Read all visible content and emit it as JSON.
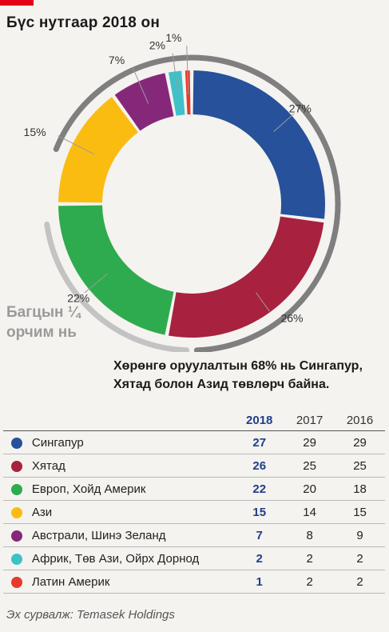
{
  "title": "Бүс нутгаар 2018 он",
  "quarter_note": [
    "Багцын ¼",
    "орчим нь"
  ],
  "subtitle": [
    "Хөрөнгө оруулалтын 68% нь Сингапур,",
    "Хятад болон Азид төвлөрч байна."
  ],
  "source": "Эх сурвалж: Temasek Holdings",
  "colors": {
    "background": "#f4f3ef",
    "accent_red": "#e2001a",
    "arc_gray_dark": "#7f7f7f",
    "arc_gray_light": "#c3c3c3",
    "year_2018": "#1f3d8a"
  },
  "chart_data": {
    "type": "pie",
    "style": "donut",
    "title": "Бүс нутгаар 2018 он",
    "slice_labels_2018": [
      "27%",
      "26%",
      "22%",
      "15%",
      "7%",
      "2%",
      "1%"
    ],
    "table": {
      "columns": [
        "2018",
        "2017",
        "2016"
      ],
      "rows": [
        {
          "name": "Сингапур",
          "color": "#27519a",
          "v2018": 27,
          "v2017": 29,
          "v2016": 29
        },
        {
          "name": "Хятад",
          "color": "#a8213f",
          "v2018": 26,
          "v2017": 25,
          "v2016": 25
        },
        {
          "name": "Европ, Хойд Америк",
          "color": "#2eab4e",
          "v2018": 22,
          "v2017": 20,
          "v2016": 18
        },
        {
          "name": "Ази",
          "color": "#fbbc12",
          "v2018": 15,
          "v2017": 14,
          "v2016": 15
        },
        {
          "name": "Австрали, Шинэ Зеланд",
          "color": "#86287a",
          "v2018": 7,
          "v2017": 8,
          "v2016": 9
        },
        {
          "name": "Африк, Төв Ази, Ойрх Дорнод",
          "color": "#3fc1c9",
          "v2018": 2,
          "v2017": 2,
          "v2016": 2
        },
        {
          "name": "Латин Америк",
          "color": "#e8392a",
          "v2018": 1,
          "v2017": 2,
          "v2016": 2
        }
      ]
    }
  }
}
